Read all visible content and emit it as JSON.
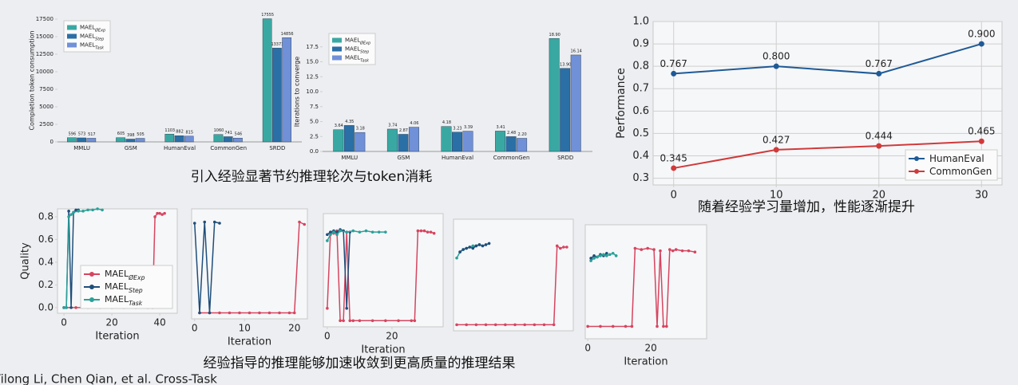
{
  "captions": [
    "引入经验显著节约推理轮次与token消耗",
    "随着经验学习量增加，性能逐渐提升",
    "经验指导的推理能够加速收敛到更高质量的推理结果"
  ],
  "footer": "Yilong Li, Chen Qian, et al. Cross-Task",
  "chart_data": [
    {
      "type": "bar",
      "y_label": "Completion token consumption",
      "legend": "upper left",
      "categories": [
        "MMLU",
        "GSM",
        "HumanEval",
        "CommonGen",
        "SRDD"
      ],
      "ylim": [
        0,
        17500
      ],
      "yticks": [
        0,
        2500,
        5000,
        7500,
        10000,
        12500,
        15000,
        17500
      ],
      "series": [
        {
          "name": "MAEL",
          "sub": "ØExp",
          "color": "#3aa8a2",
          "values": [
            596,
            605,
            1103,
            1060,
            17555
          ]
        },
        {
          "name": "MAEL",
          "sub": "Step",
          "color": "#2a6fa6",
          "values": [
            573,
            398,
            882,
            741,
            13373
          ]
        },
        {
          "name": "MAEL",
          "sub": "Task",
          "color": "#7090d8",
          "values": [
            517,
            505,
            815,
            546,
            14856
          ]
        }
      ]
    },
    {
      "type": "bar",
      "y_label": "Iterations to converge",
      "legend": "upper left",
      "categories": [
        "MMLU",
        "GSM",
        "HumanEval",
        "CommonGen",
        "SRDD"
      ],
      "ylim": [
        0,
        20
      ],
      "yticks": [
        {
          "value": 0,
          "label": "0.0"
        },
        2.5,
        {
          "value": 5,
          "label": "5.0"
        },
        7.5,
        {
          "value": 10,
          "label": "10.0"
        },
        12.5,
        {
          "value": 15,
          "label": "15.0"
        },
        17.5
      ],
      "series": [
        {
          "name": "MAEL",
          "sub": "ØExp",
          "color": "#3aa8a2",
          "values": [
            3.64,
            3.74,
            4.18,
            3.41,
            18.9
          ],
          "value_labels": [
            "3.64",
            "3.74",
            "4.18",
            "3.41",
            "18.90"
          ]
        },
        {
          "name": "MAEL",
          "sub": "Step",
          "color": "#2a6fa6",
          "values": [
            4.35,
            2.87,
            3.23,
            2.48,
            13.9
          ],
          "value_labels": [
            "4.35",
            "2.87",
            "3.23",
            "2.48",
            "13.90"
          ]
        },
        {
          "name": "MAEL",
          "sub": "Task",
          "color": "#7090d8",
          "values": [
            3.18,
            4.06,
            3.39,
            2.2,
            16.14
          ],
          "value_labels": [
            "3.18",
            "4.06",
            "3.39",
            "2.20",
            "16.14"
          ]
        }
      ]
    },
    {
      "type": "line",
      "y_label": "Performance",
      "legend": "lower right",
      "grid": true,
      "x": [
        0,
        10,
        20,
        30
      ],
      "xlim": [
        -2,
        32
      ],
      "xticks": [
        0,
        10,
        20,
        30
      ],
      "ylim": [
        0.27,
        1.0
      ],
      "yticks": [
        0.3,
        0.4,
        0.5,
        0.6,
        0.7,
        0.8,
        0.9,
        {
          "value": 1,
          "label": "1.0"
        }
      ],
      "series": [
        {
          "name": "HumanEval",
          "color": "#1f5a96",
          "values": [
            0.767,
            0.8,
            0.767,
            0.9
          ],
          "value_labels": [
            "0.767",
            "0.800",
            "0.767",
            "0.900"
          ]
        },
        {
          "name": "CommonGen",
          "color": "#d03a3a",
          "values": [
            0.345,
            0.427,
            0.444,
            0.465
          ],
          "value_labels": [
            "0.345",
            "0.427",
            "0.444",
            "0.465"
          ]
        }
      ]
    },
    {
      "type": "line",
      "y_label": "Quality",
      "x_label": "Iteration",
      "legend": "lower right",
      "xlim": [
        -2.7,
        47.3
      ],
      "xticks": [
        0,
        20,
        40
      ],
      "ylim": [
        -0.05,
        0.87
      ],
      "yticks": [
        {
          "value": 0,
          "label": "0.0"
        },
        0.2,
        0.4,
        0.6,
        0.8
      ],
      "series": [
        {
          "name": "MAEL",
          "sub": "ØExp",
          "color": "#d6455f",
          "x": [
            0,
            5,
            10,
            15,
            20,
            25,
            30,
            35,
            37,
            38,
            39,
            40,
            41,
            42
          ],
          "values": [
            0,
            0,
            0,
            0,
            0,
            0,
            0,
            0,
            0,
            0.8,
            0.83,
            0.83,
            0.82,
            0.83
          ]
        },
        {
          "name": "MAEL",
          "sub": "Step",
          "color": "#1f4e79",
          "x": [
            0,
            1,
            2,
            3,
            4,
            5,
            6
          ],
          "values": [
            0,
            0,
            0.85,
            0,
            0.84,
            0.86,
            0.86
          ]
        },
        {
          "name": "MAEL",
          "sub": "Task",
          "color": "#2aa198",
          "x": [
            0,
            1,
            2,
            3,
            4,
            6,
            8,
            10,
            12,
            14,
            16
          ],
          "values": [
            0,
            0,
            0.8,
            0.82,
            0.84,
            0.85,
            0.85,
            0.86,
            0.86,
            0.87,
            0.86
          ]
        }
      ]
    },
    {
      "type": "line",
      "x_label": "Iteration",
      "xlim": [
        -0.6,
        22.6
      ],
      "xticks": [
        0,
        10,
        20
      ],
      "ylim": [
        -0.05,
        0.87
      ],
      "series": [
        {
          "color": "#d6455f",
          "x": [
            1,
            3,
            5,
            7,
            9,
            11,
            13,
            15,
            17,
            19,
            20,
            21,
            22
          ],
          "values": [
            0,
            0,
            0,
            0,
            0,
            0,
            0,
            0,
            0,
            0,
            0,
            0.76,
            0.74
          ]
        },
        {
          "color": "#1f4e79",
          "x": [
            0,
            1,
            2,
            3,
            4,
            5
          ],
          "values": [
            0.75,
            0,
            0.76,
            0,
            0.76,
            0.75
          ]
        }
      ]
    },
    {
      "type": "line",
      "x_label": "Iteration",
      "xlim": [
        -1.2,
        35.8
      ],
      "xticks": [
        0,
        20
      ],
      "ylim": [
        -0.05,
        0.87
      ],
      "series": [
        {
          "color": "#d6455f",
          "x": [
            0,
            1,
            2,
            3,
            4,
            5,
            6,
            7,
            8,
            10,
            14,
            18,
            22,
            26,
            27,
            28,
            29,
            30,
            31,
            32,
            33
          ],
          "values": [
            0.1,
            0.72,
            0.71,
            0.73,
            0,
            0,
            0.72,
            0,
            0,
            0,
            0,
            0,
            0,
            0,
            0,
            0.73,
            0.73,
            0.73,
            0.72,
            0.72,
            0.71
          ]
        },
        {
          "color": "#1f4e79",
          "x": [
            0,
            1,
            2,
            3,
            4,
            5,
            6,
            7
          ],
          "values": [
            0.7,
            0.72,
            0.73,
            0.72,
            0.74,
            0.73,
            0.1,
            0.72
          ]
        },
        {
          "color": "#2aa198",
          "x": [
            0,
            1,
            2,
            3,
            4,
            6,
            8,
            10,
            12,
            14,
            16,
            18
          ],
          "values": [
            0.65,
            0.7,
            0.72,
            0.7,
            0.73,
            0.72,
            0.73,
            0.72,
            0.73,
            0.72,
            0.72,
            0.72
          ]
        }
      ]
    },
    {
      "type": "line",
      "xlim": [
        -1,
        36
      ],
      "ylim": [
        -0.05,
        0.87
      ],
      "series": [
        {
          "color": "#d6455f",
          "x": [
            0,
            3,
            6,
            9,
            12,
            15,
            18,
            21,
            24,
            27,
            30,
            31,
            32,
            33,
            34
          ],
          "values": [
            0,
            0,
            0,
            0,
            0,
            0,
            0,
            0,
            0,
            0,
            0,
            0.65,
            0.63,
            0.64,
            0.64
          ]
        },
        {
          "color": "#2aa198",
          "x": [
            0,
            1,
            2,
            3,
            4,
            5,
            6,
            7
          ],
          "values": [
            0.55,
            0.6,
            0.62,
            0.63,
            0.64,
            0.65,
            0.65,
            0.66
          ]
        },
        {
          "color": "#1f4e79",
          "x": [
            1,
            2,
            3,
            4,
            5,
            6,
            7,
            8,
            9,
            10
          ],
          "values": [
            0.6,
            0.62,
            0.63,
            0.64,
            0.63,
            0.65,
            0.66,
            0.65,
            0.66,
            0.67
          ]
        }
      ]
    },
    {
      "type": "line",
      "x_label": "Iteration",
      "xlim": [
        -0.8,
        37.7
      ],
      "xticks": [
        0,
        20
      ],
      "ylim": [
        -0.05,
        0.87
      ],
      "series": [
        {
          "color": "#d6455f",
          "x": [
            0,
            4,
            8,
            12,
            14,
            15,
            17,
            19,
            21,
            22,
            23,
            24,
            25,
            26,
            27,
            28,
            30,
            32,
            34
          ],
          "values": [
            0.05,
            0.05,
            0.05,
            0.05,
            0.05,
            0.68,
            0.67,
            0.68,
            0.67,
            0.05,
            0.66,
            0.05,
            0.05,
            0.67,
            0.66,
            0.67,
            0.66,
            0.66,
            0.65
          ]
        },
        {
          "color": "#1f4e79",
          "x": [
            1,
            2,
            3,
            4,
            5,
            6
          ],
          "values": [
            0.6,
            0.62,
            0.61,
            0.63,
            0.62,
            0.64
          ]
        },
        {
          "color": "#2aa198",
          "x": [
            1,
            2,
            3,
            4,
            5,
            6,
            7,
            8,
            9
          ],
          "values": [
            0.58,
            0.6,
            0.61,
            0.62,
            0.63,
            0.62,
            0.63,
            0.64,
            0.62
          ]
        }
      ]
    }
  ]
}
